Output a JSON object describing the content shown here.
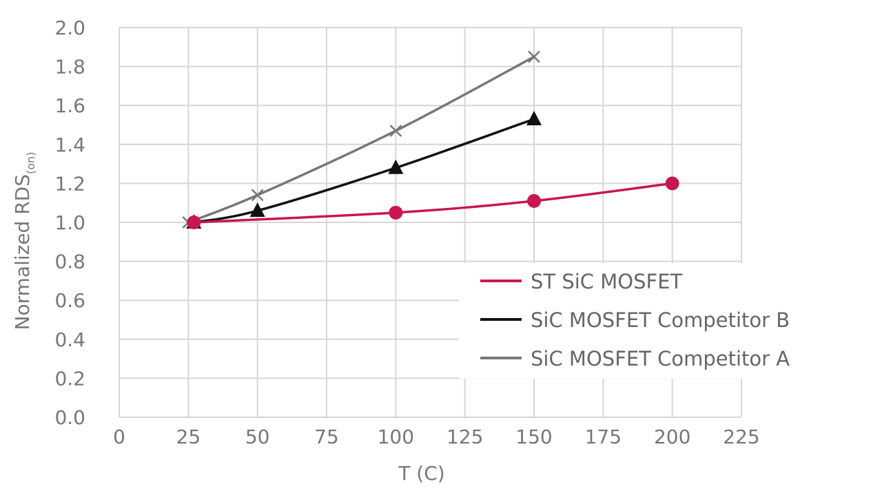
{
  "chart_data": {
    "type": "line",
    "xlabel": "T (C)",
    "ylabel_main": "Normalized RDS",
    "ylabel_sub": "(on)",
    "xlim": [
      0,
      225
    ],
    "ylim": [
      0.0,
      2.0
    ],
    "x_ticks": [
      "0",
      "25",
      "50",
      "75",
      "100",
      "125",
      "150",
      "175",
      "200",
      "225"
    ],
    "y_ticks": [
      "0.0",
      "0.2",
      "0.4",
      "0.6",
      "0.8",
      "1.0",
      "1.2",
      "1.4",
      "1.6",
      "1.8",
      "2.0"
    ],
    "grid": true,
    "legend_position": "bottom-right",
    "series": [
      {
        "name": "ST SiC MOSFET",
        "color": "#c8174f",
        "marker": "circle",
        "x": [
          27,
          100,
          150,
          200
        ],
        "y": [
          1.0,
          1.05,
          1.11,
          1.2
        ]
      },
      {
        "name": "SiC MOSFET Competitor B",
        "color": "#111111",
        "marker": "triangle",
        "x": [
          27,
          50,
          100,
          150
        ],
        "y": [
          1.0,
          1.06,
          1.28,
          1.53
        ]
      },
      {
        "name": "SiC MOSFET Competitor A",
        "color": "#777777",
        "marker": "x",
        "x": [
          25,
          50,
          100,
          150
        ],
        "y": [
          1.0,
          1.14,
          1.47,
          1.85
        ]
      }
    ]
  }
}
